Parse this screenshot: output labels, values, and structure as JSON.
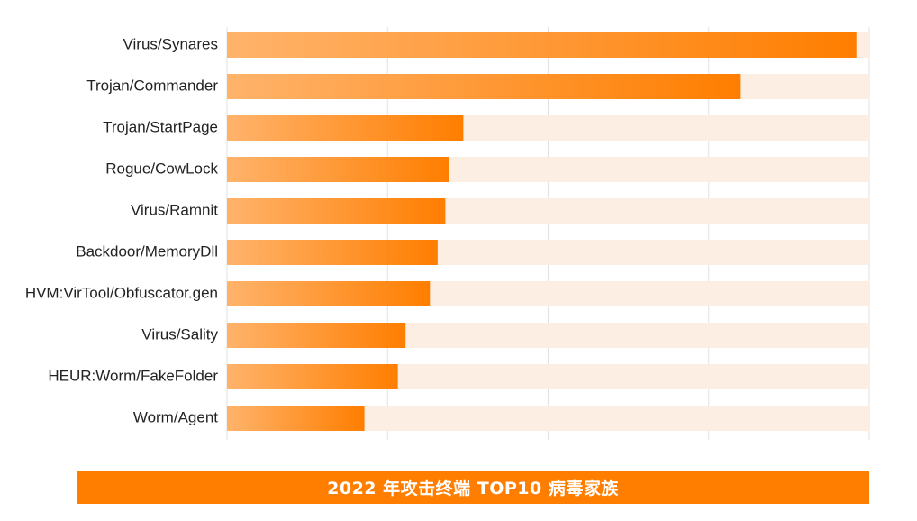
{
  "chart_data": {
    "type": "bar",
    "orientation": "horizontal",
    "categories": [
      "Virus/Synares",
      "Trojan/Commander",
      "Trojan/StartPage",
      "Rogue/CowLock",
      "Virus/Ramnit",
      "Backdoor/MemoryDll",
      "HVM:VirTool/Obfuscator.gen",
      "Virus/Sality",
      "HEUR:Worm/FakeFolder",
      "Worm/Agent"
    ],
    "values": [
      98,
      80,
      36.8,
      34.6,
      34,
      32.8,
      31.6,
      27.8,
      26.6,
      21.4
    ],
    "xlim": [
      0,
      100
    ],
    "title": "",
    "xlabel": "",
    "ylabel": "",
    "grid": true,
    "legend": "none",
    "colors": {
      "bar_start": "#ffb36b",
      "bar_end": "#ff7e00",
      "track": "#fdeee3",
      "grid": "#e2e2e2",
      "footer": "#ff7e00"
    }
  },
  "footer": {
    "title": "2022 年攻击终端 TOP10 病毒家族"
  }
}
